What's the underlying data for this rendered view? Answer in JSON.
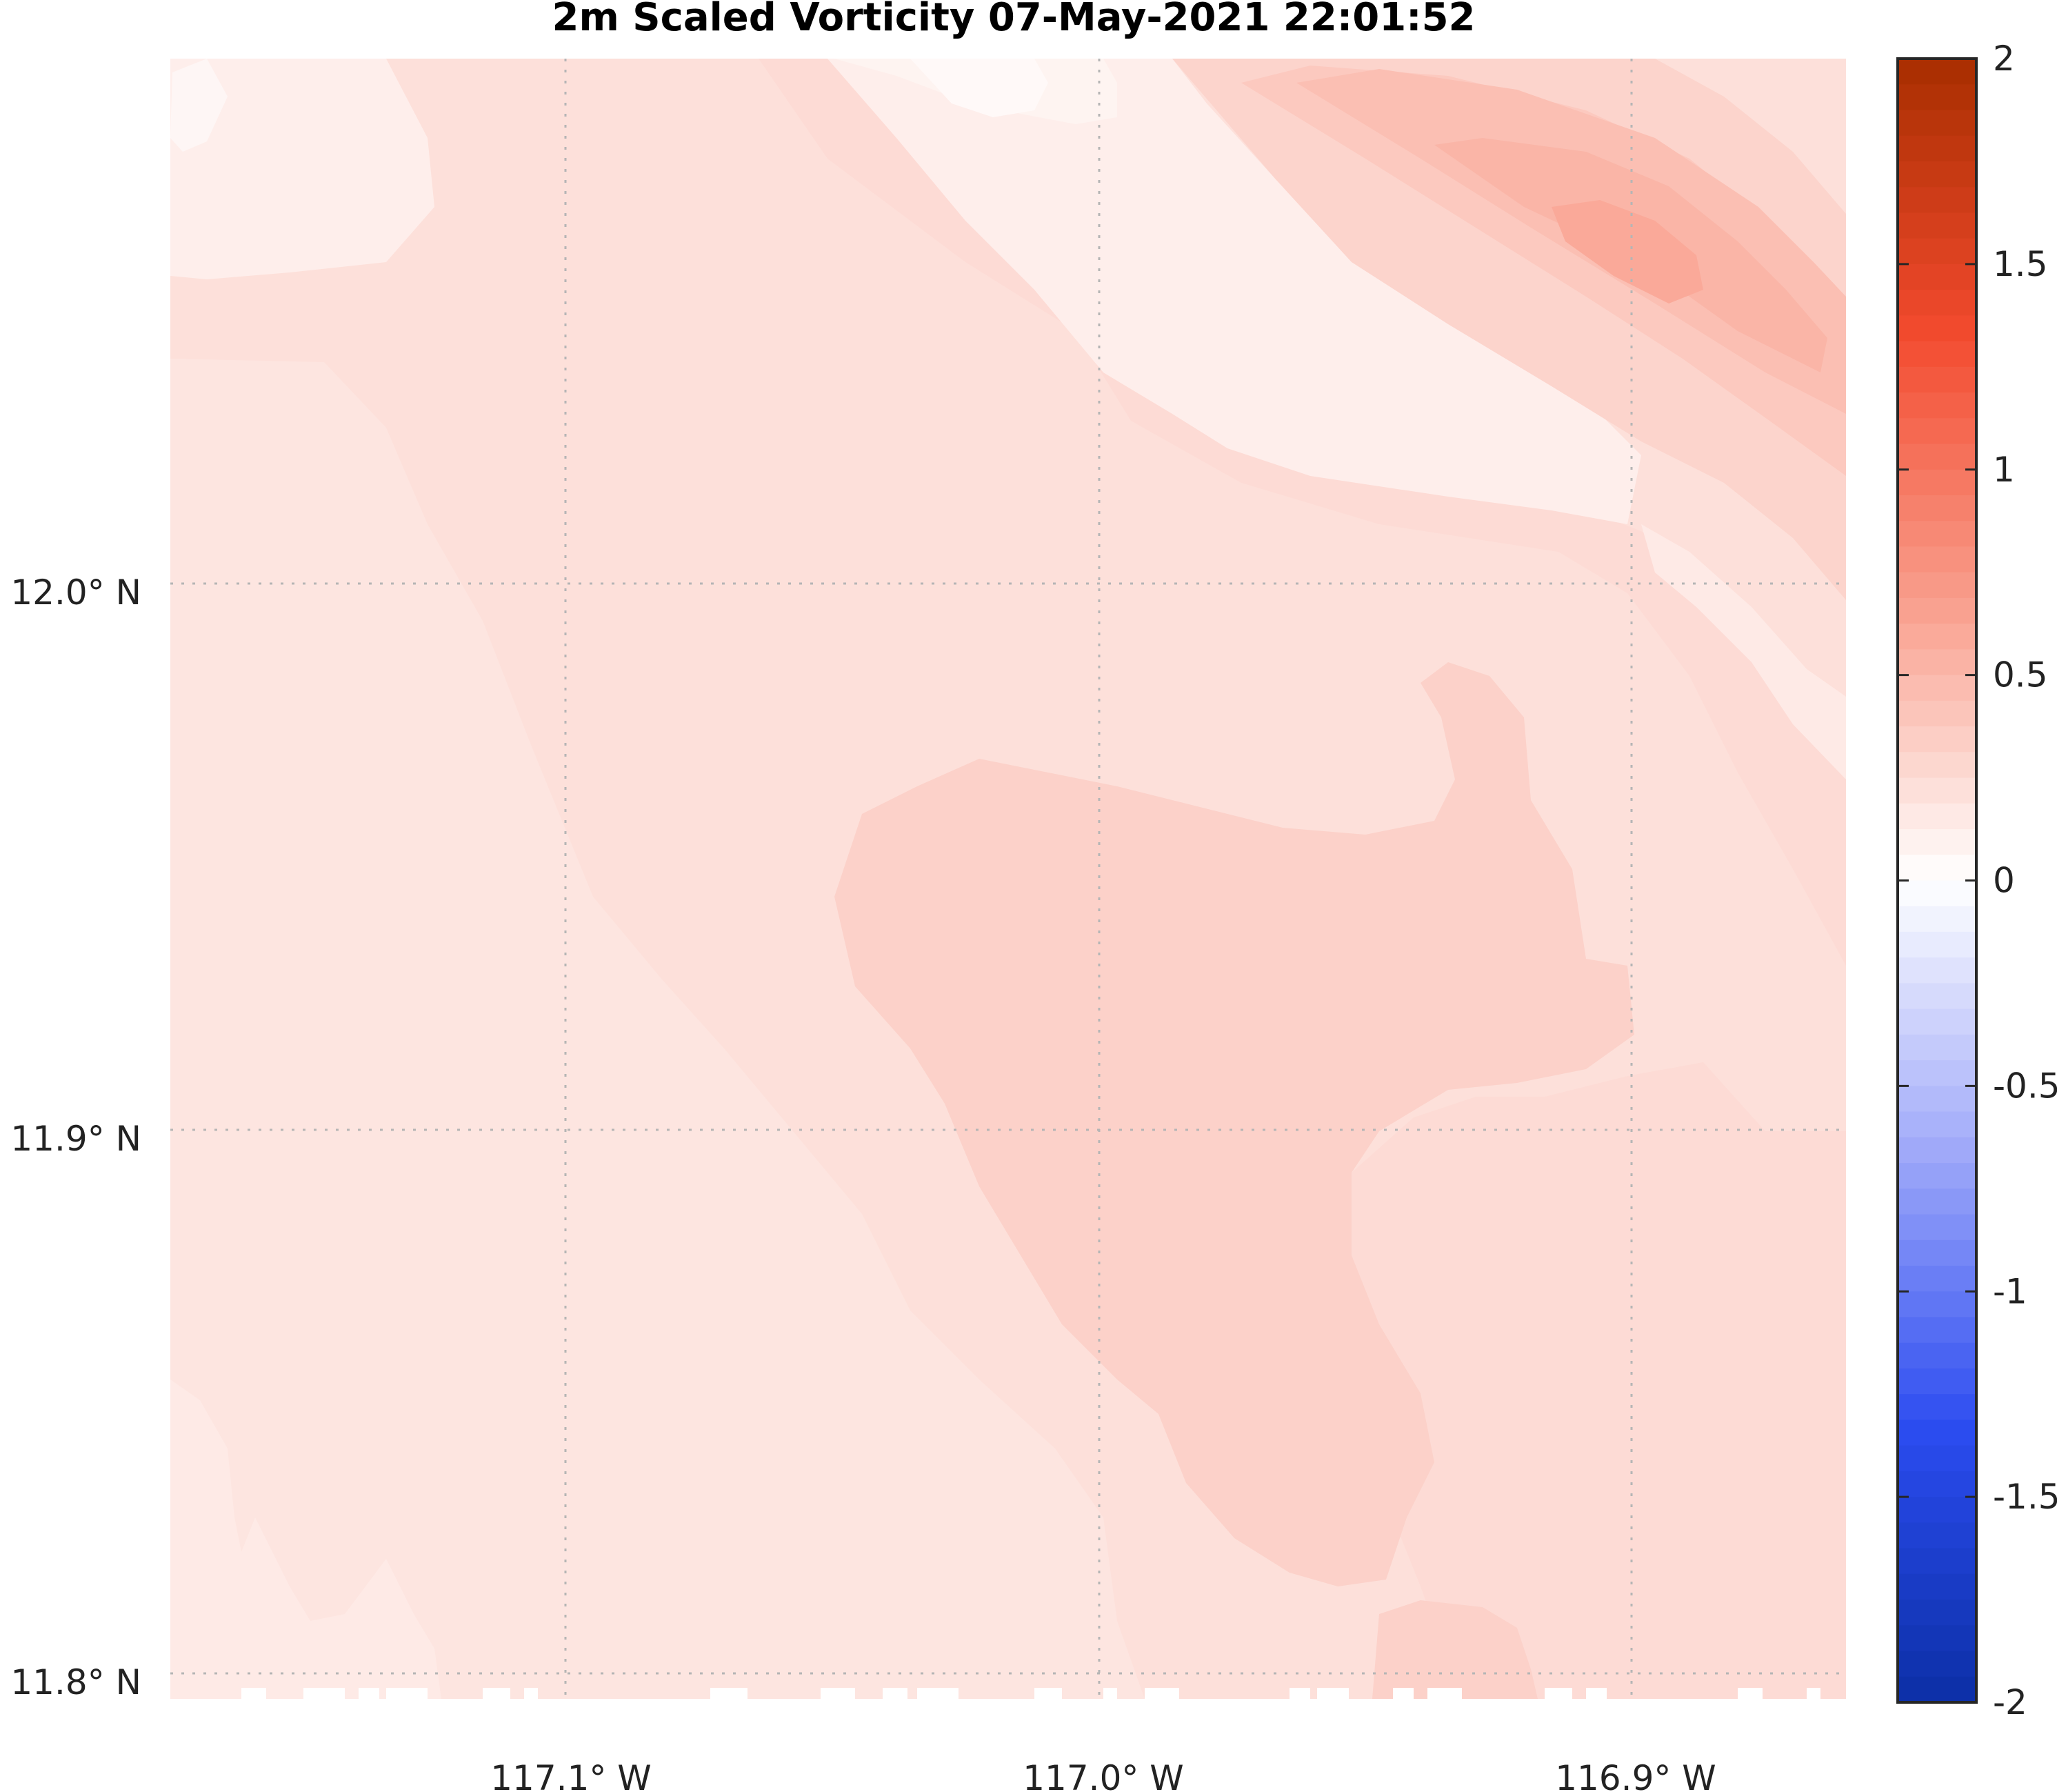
{
  "chart_data": {
    "type": "heatmap",
    "title": "2m Scaled Vorticity  07-May-2021 22:01:52",
    "x_ticks": [
      {
        "value": -117.1,
        "label": "117.1° W"
      },
      {
        "value": -117.0,
        "label": "117.0° W"
      },
      {
        "value": -116.9,
        "label": "116.9° W"
      }
    ],
    "y_ticks": [
      {
        "value": 12.0,
        "label": "12.0° N"
      },
      {
        "value": 11.9,
        "label": "11.9° N"
      },
      {
        "value": 11.8,
        "label": "11.8° N"
      }
    ],
    "xlim": [
      -117.174,
      -116.86
    ],
    "ylim": [
      11.797,
      12.097
    ],
    "grid": true,
    "colorbar": {
      "range": [
        -2,
        2
      ],
      "ticks": [
        2,
        1.5,
        1,
        0.5,
        0,
        -0.5,
        -1,
        -1.5,
        -2
      ],
      "tick_labels": [
        "2",
        "1.5",
        "1",
        "0.5",
        "0",
        "-0.5",
        "-1",
        "-1.5",
        "-2"
      ],
      "levels": 64,
      "colormap": [
        "#0b2fa6",
        "#2c4cf0",
        "#9ea8f9",
        "#ffffff",
        "#f9a08e",
        "#f24a2e",
        "#a82e00"
      ]
    },
    "regions": [
      {
        "name": "background",
        "value": 0.22
      },
      {
        "name": "west-band",
        "value": 0.18
      },
      {
        "name": "nw-corner",
        "value": 0.12
      },
      {
        "name": "nw-corner-light",
        "value": 0.06
      },
      {
        "name": "upper-band",
        "value": 0.25
      },
      {
        "name": "northeast-band",
        "value": 0.12
      },
      {
        "name": "east-strip",
        "value": 0.15
      },
      {
        "name": "southeast-region",
        "value": 0.25
      },
      {
        "name": "central-region",
        "value": 0.32
      },
      {
        "name": "southeast-blob",
        "value": 0.32
      },
      {
        "name": "southwest-region",
        "value": 0.15
      },
      {
        "name": "ne-max-1",
        "value": 0.3
      },
      {
        "name": "ne-max-2",
        "value": 0.38
      },
      {
        "name": "ne-max-3",
        "value": 0.45
      },
      {
        "name": "ne-max-4",
        "value": 0.52
      },
      {
        "name": "ne-max-5",
        "value": 0.6
      },
      {
        "name": "top-light-1",
        "value": 0.08
      },
      {
        "name": "top-light-2",
        "value": 0.04
      }
    ]
  }
}
